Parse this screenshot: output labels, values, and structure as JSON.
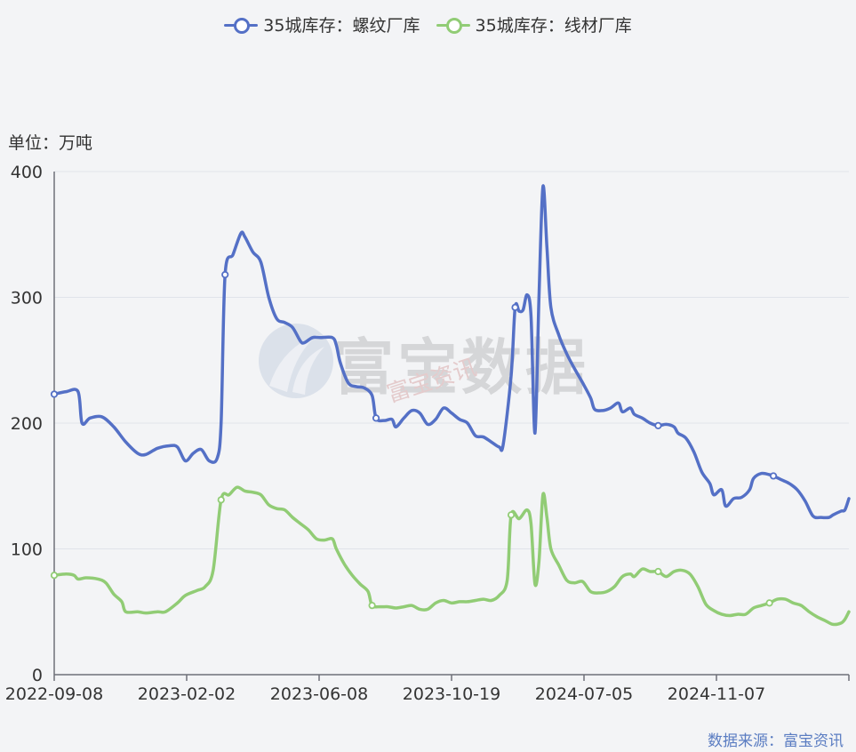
{
  "legend": {
    "series_a": "35城库存：螺纹厂库",
    "series_b": "35城库存：线材厂库"
  },
  "unit_label": "单位：万吨",
  "source": "数据来源：富宝资讯",
  "watermark": {
    "main": "富宝数据",
    "sub": "富宝资讯"
  },
  "colors": {
    "series_a": "#5470c6",
    "series_b": "#91cc75",
    "axis": "#6e7079",
    "grid": "#e0e3ea"
  },
  "chart_data": {
    "type": "line",
    "x_ticks": [
      "2022-09-08",
      "2023-02-02",
      "2023-06-08",
      "2023-10-19",
      "2024-07-05",
      "2024-11-07"
    ],
    "y_ticks": [
      0,
      100,
      200,
      300,
      400
    ],
    "ylim": [
      0,
      400
    ],
    "series": [
      {
        "name": "35城库存：螺纹厂库",
        "color": "#5470c6",
        "points": [
          [
            0,
            223
          ],
          [
            3,
            225
          ],
          [
            6,
            225
          ],
          [
            7,
            200
          ],
          [
            9,
            204
          ],
          [
            12,
            205
          ],
          [
            15,
            197
          ],
          [
            18,
            185
          ],
          [
            21,
            176
          ],
          [
            23,
            175
          ],
          [
            26,
            180
          ],
          [
            29,
            182
          ],
          [
            31,
            181
          ],
          [
            33,
            170
          ],
          [
            35,
            176
          ],
          [
            37,
            179
          ],
          [
            39,
            170
          ],
          [
            41,
            172
          ],
          [
            42,
            200
          ],
          [
            43,
            318
          ],
          [
            45,
            334
          ],
          [
            47,
            351
          ],
          [
            48,
            348
          ],
          [
            50,
            336
          ],
          [
            52,
            328
          ],
          [
            54,
            300
          ],
          [
            56,
            283
          ],
          [
            58,
            280
          ],
          [
            60,
            276
          ],
          [
            62,
            265
          ],
          [
            63,
            264
          ],
          [
            65,
            268
          ],
          [
            67,
            268
          ],
          [
            70,
            268
          ],
          [
            71,
            262
          ],
          [
            72,
            248
          ],
          [
            74,
            232
          ],
          [
            76,
            229
          ],
          [
            78,
            228
          ],
          [
            80,
            222
          ],
          [
            81,
            204
          ],
          [
            83,
            202
          ],
          [
            85,
            203
          ],
          [
            86,
            197
          ],
          [
            88,
            204
          ],
          [
            90,
            210
          ],
          [
            92,
            208
          ],
          [
            94,
            199
          ],
          [
            96,
            203
          ],
          [
            98,
            212
          ],
          [
            100,
            208
          ],
          [
            102,
            203
          ],
          [
            104,
            200
          ],
          [
            106,
            190
          ],
          [
            108,
            189
          ],
          [
            110,
            185
          ],
          [
            112,
            181
          ],
          [
            113,
            183
          ],
          [
            115,
            238
          ],
          [
            116,
            292
          ],
          [
            117,
            289
          ],
          [
            118,
            290
          ],
          [
            119,
            302
          ],
          [
            120,
            285
          ],
          [
            121,
            192
          ],
          [
            122,
            300
          ],
          [
            123,
            388
          ],
          [
            124,
            340
          ],
          [
            125,
            292
          ],
          [
            127,
            270
          ],
          [
            129,
            255
          ],
          [
            131,
            243
          ],
          [
            133,
            232
          ],
          [
            135,
            220
          ],
          [
            136,
            211
          ],
          [
            138,
            210
          ],
          [
            140,
            212
          ],
          [
            142,
            216
          ],
          [
            143,
            209
          ],
          [
            145,
            212
          ],
          [
            146,
            207
          ],
          [
            148,
            204
          ],
          [
            150,
            200
          ],
          [
            152,
            198
          ],
          [
            154,
            199
          ],
          [
            156,
            197
          ],
          [
            157,
            192
          ],
          [
            159,
            188
          ],
          [
            161,
            177
          ],
          [
            163,
            161
          ],
          [
            165,
            152
          ],
          [
            166,
            143
          ],
          [
            168,
            147
          ],
          [
            169,
            134
          ],
          [
            171,
            140
          ],
          [
            173,
            141
          ],
          [
            175,
            147
          ],
          [
            176,
            156
          ],
          [
            178,
            160
          ],
          [
            180,
            159
          ],
          [
            181,
            158
          ],
          [
            183,
            155
          ],
          [
            185,
            152
          ],
          [
            187,
            147
          ],
          [
            189,
            138
          ],
          [
            191,
            126
          ],
          [
            193,
            125
          ],
          [
            195,
            125
          ],
          [
            196,
            127
          ],
          [
            198,
            130
          ],
          [
            199,
            131
          ],
          [
            200,
            140
          ]
        ]
      },
      {
        "name": "35城库存：线材厂库",
        "color": "#91cc75",
        "points": [
          [
            0,
            79
          ],
          [
            3,
            80
          ],
          [
            5,
            79
          ],
          [
            6,
            76
          ],
          [
            8,
            77
          ],
          [
            11,
            76
          ],
          [
            13,
            73
          ],
          [
            15,
            64
          ],
          [
            17,
            58
          ],
          [
            18,
            50
          ],
          [
            21,
            50
          ],
          [
            23,
            49
          ],
          [
            26,
            50
          ],
          [
            28,
            50
          ],
          [
            31,
            57
          ],
          [
            33,
            63
          ],
          [
            36,
            67
          ],
          [
            38,
            70
          ],
          [
            40,
            83
          ],
          [
            42,
            139
          ],
          [
            44,
            143
          ],
          [
            46,
            149
          ],
          [
            48,
            146
          ],
          [
            50,
            145
          ],
          [
            52,
            143
          ],
          [
            54,
            135
          ],
          [
            56,
            132
          ],
          [
            58,
            131
          ],
          [
            60,
            125
          ],
          [
            62,
            120
          ],
          [
            64,
            115
          ],
          [
            66,
            108
          ],
          [
            68,
            107
          ],
          [
            70,
            108
          ],
          [
            71,
            100
          ],
          [
            73,
            88
          ],
          [
            75,
            79
          ],
          [
            77,
            72
          ],
          [
            79,
            66
          ],
          [
            80,
            55
          ],
          [
            82,
            54
          ],
          [
            84,
            54
          ],
          [
            86,
            53
          ],
          [
            88,
            54
          ],
          [
            90,
            55
          ],
          [
            92,
            52
          ],
          [
            94,
            52
          ],
          [
            96,
            57
          ],
          [
            98,
            59
          ],
          [
            100,
            57
          ],
          [
            102,
            58
          ],
          [
            104,
            58
          ],
          [
            106,
            59
          ],
          [
            108,
            60
          ],
          [
            110,
            59
          ],
          [
            112,
            63
          ],
          [
            114,
            75
          ],
          [
            115,
            127
          ],
          [
            117,
            124
          ],
          [
            119,
            131
          ],
          [
            120,
            120
          ],
          [
            121,
            72
          ],
          [
            122,
            90
          ],
          [
            123,
            143
          ],
          [
            124,
            125
          ],
          [
            125,
            100
          ],
          [
            127,
            87
          ],
          [
            129,
            75
          ],
          [
            131,
            73
          ],
          [
            133,
            74
          ],
          [
            135,
            66
          ],
          [
            137,
            65
          ],
          [
            139,
            66
          ],
          [
            141,
            70
          ],
          [
            143,
            78
          ],
          [
            145,
            80
          ],
          [
            146,
            78
          ],
          [
            148,
            84
          ],
          [
            150,
            82
          ],
          [
            152,
            82
          ],
          [
            154,
            78
          ],
          [
            156,
            82
          ],
          [
            158,
            83
          ],
          [
            160,
            80
          ],
          [
            162,
            70
          ],
          [
            164,
            56
          ],
          [
            166,
            51
          ],
          [
            168,
            48
          ],
          [
            170,
            47
          ],
          [
            172,
            48
          ],
          [
            174,
            48
          ],
          [
            176,
            53
          ],
          [
            178,
            55
          ],
          [
            180,
            57
          ],
          [
            182,
            60
          ],
          [
            184,
            60
          ],
          [
            186,
            57
          ],
          [
            188,
            55
          ],
          [
            190,
            50
          ],
          [
            192,
            46
          ],
          [
            194,
            43
          ],
          [
            196,
            40
          ],
          [
            198,
            41
          ],
          [
            199,
            44
          ],
          [
            200,
            50
          ]
        ]
      }
    ]
  }
}
